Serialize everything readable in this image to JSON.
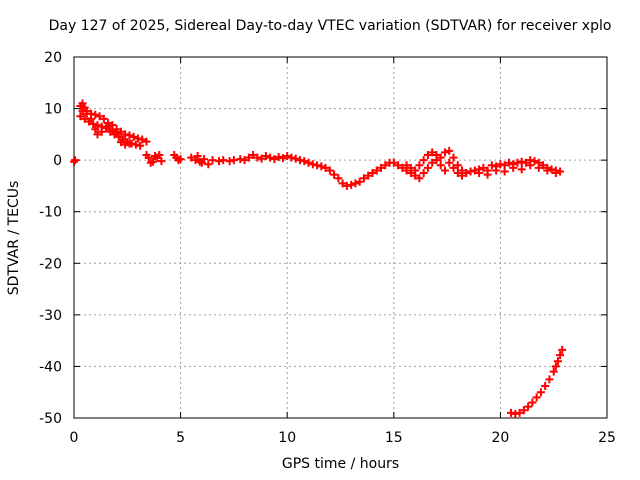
{
  "chart_data": {
    "type": "scatter",
    "title": "Day 127 of 2025, Sidereal Day-to-day VTEC variation (SDTVAR) for receiver xplo",
    "xlabel": "GPS time / hours",
    "ylabel": "SDTVAR / TECUs",
    "xlim": [
      0,
      25
    ],
    "ylim": [
      -50,
      20
    ],
    "xticks": [
      0,
      5,
      10,
      15,
      20,
      25
    ],
    "yticks": [
      20,
      10,
      0,
      -10,
      -20,
      -30,
      -40,
      -50
    ],
    "grid": true,
    "marker": "+",
    "color": "#ff0000",
    "series": [
      {
        "name": "SDTVAR",
        "points": [
          [
            0.0,
            -0.3
          ],
          [
            0.05,
            0.0
          ],
          [
            0.3,
            10.5
          ],
          [
            0.4,
            11.0
          ],
          [
            0.5,
            10.2
          ],
          [
            0.6,
            9.5
          ],
          [
            0.8,
            9.0
          ],
          [
            1.0,
            8.8
          ],
          [
            1.2,
            8.5
          ],
          [
            1.4,
            8.0
          ],
          [
            1.6,
            7.2
          ],
          [
            1.8,
            6.8
          ],
          [
            2.0,
            6.0
          ],
          [
            2.2,
            5.5
          ],
          [
            2.4,
            5.0
          ],
          [
            2.6,
            4.8
          ],
          [
            2.8,
            4.5
          ],
          [
            3.0,
            4.2
          ],
          [
            3.2,
            4.0
          ],
          [
            3.4,
            3.6
          ],
          [
            0.3,
            8.5
          ],
          [
            0.5,
            8.0
          ],
          [
            0.7,
            7.5
          ],
          [
            0.9,
            7.0
          ],
          [
            1.1,
            6.8
          ],
          [
            1.3,
            6.5
          ],
          [
            1.5,
            6.2
          ],
          [
            1.7,
            5.5
          ],
          [
            1.9,
            5.0
          ],
          [
            2.1,
            4.5
          ],
          [
            2.3,
            4.0
          ],
          [
            2.5,
            3.5
          ],
          [
            2.7,
            3.2
          ],
          [
            2.9,
            3.0
          ],
          [
            3.1,
            2.8
          ],
          [
            0.4,
            9.5
          ],
          [
            0.6,
            9.0
          ],
          [
            0.8,
            8.0
          ],
          [
            1.0,
            6.0
          ],
          [
            1.1,
            5.0
          ],
          [
            1.3,
            5.5
          ],
          [
            1.6,
            6.5
          ],
          [
            1.8,
            5.8
          ],
          [
            2.0,
            5.2
          ],
          [
            2.2,
            3.5
          ],
          [
            2.4,
            3.0
          ],
          [
            2.6,
            3.2
          ],
          [
            3.4,
            1.0
          ],
          [
            3.5,
            0.5
          ],
          [
            3.6,
            -0.5
          ],
          [
            3.7,
            -0.3
          ],
          [
            3.8,
            0.8
          ],
          [
            3.9,
            0.5
          ],
          [
            4.0,
            1.0
          ],
          [
            4.1,
            -0.2
          ],
          [
            4.7,
            1.0
          ],
          [
            4.8,
            0.5
          ],
          [
            4.9,
            0.0
          ],
          [
            5.0,
            0.2
          ],
          [
            5.5,
            0.5
          ],
          [
            5.7,
            0.0
          ],
          [
            5.8,
            0.8
          ],
          [
            5.9,
            -0.3
          ],
          [
            6.0,
            -0.5
          ],
          [
            6.1,
            0.2
          ],
          [
            6.3,
            -0.8
          ],
          [
            6.5,
            0.0
          ],
          [
            6.8,
            -0.2
          ],
          [
            7.0,
            0.0
          ],
          [
            7.3,
            -0.2
          ],
          [
            7.5,
            0.0
          ],
          [
            7.8,
            0.2
          ],
          [
            8.0,
            0.0
          ],
          [
            8.2,
            0.5
          ],
          [
            8.4,
            1.0
          ],
          [
            8.6,
            0.5
          ],
          [
            8.8,
            0.3
          ],
          [
            9.0,
            0.8
          ],
          [
            9.2,
            0.5
          ],
          [
            9.4,
            0.2
          ],
          [
            9.6,
            0.6
          ],
          [
            9.8,
            0.4
          ],
          [
            10.0,
            0.8
          ],
          [
            10.2,
            0.5
          ],
          [
            10.4,
            0.3
          ],
          [
            10.6,
            0.0
          ],
          [
            10.8,
            -0.2
          ],
          [
            11.0,
            -0.5
          ],
          [
            11.2,
            -0.8
          ],
          [
            11.4,
            -1.0
          ],
          [
            11.6,
            -1.2
          ],
          [
            11.8,
            -1.5
          ],
          [
            12.0,
            -2.0
          ],
          [
            12.2,
            -2.8
          ],
          [
            12.4,
            -3.5
          ],
          [
            12.6,
            -4.5
          ],
          [
            12.8,
            -5.0
          ],
          [
            13.0,
            -4.8
          ],
          [
            13.2,
            -4.5
          ],
          [
            13.4,
            -4.2
          ],
          [
            13.6,
            -3.5
          ],
          [
            13.8,
            -3.0
          ],
          [
            14.0,
            -2.5
          ],
          [
            14.2,
            -2.0
          ],
          [
            14.4,
            -1.5
          ],
          [
            14.6,
            -1.0
          ],
          [
            14.8,
            -0.5
          ],
          [
            15.0,
            -0.5
          ],
          [
            15.2,
            -1.0
          ],
          [
            15.4,
            -1.5
          ],
          [
            15.6,
            -2.0
          ],
          [
            15.8,
            -2.5
          ],
          [
            16.0,
            -2.0
          ],
          [
            16.2,
            -1.0
          ],
          [
            16.4,
            0.0
          ],
          [
            16.6,
            1.0
          ],
          [
            16.8,
            1.5
          ],
          [
            17.0,
            1.0
          ],
          [
            17.2,
            0.5
          ],
          [
            17.4,
            1.5
          ],
          [
            17.6,
            1.8
          ],
          [
            17.8,
            0.5
          ],
          [
            18.0,
            -1.0
          ],
          [
            18.2,
            -2.0
          ],
          [
            18.4,
            -2.5
          ],
          [
            18.6,
            -2.2
          ],
          [
            15.6,
            -1.0
          ],
          [
            15.8,
            -1.5
          ],
          [
            16.0,
            -3.0
          ],
          [
            16.2,
            -3.5
          ],
          [
            16.4,
            -2.5
          ],
          [
            16.6,
            -1.5
          ],
          [
            16.8,
            -0.5
          ],
          [
            17.0,
            0.0
          ],
          [
            17.2,
            -1.0
          ],
          [
            17.4,
            -2.0
          ],
          [
            17.6,
            -0.5
          ],
          [
            17.8,
            -1.5
          ],
          [
            18.0,
            -2.5
          ],
          [
            18.2,
            -3.0
          ],
          [
            18.8,
            -2.0
          ],
          [
            19.0,
            -1.8
          ],
          [
            19.2,
            -1.5
          ],
          [
            19.4,
            -2.0
          ],
          [
            19.6,
            -1.0
          ],
          [
            19.8,
            -1.2
          ],
          [
            20.0,
            -0.8
          ],
          [
            20.2,
            -1.0
          ],
          [
            20.4,
            -0.5
          ],
          [
            20.6,
            -0.8
          ],
          [
            20.8,
            -0.5
          ],
          [
            21.0,
            -0.3
          ],
          [
            21.2,
            -0.5
          ],
          [
            21.4,
            0.0
          ],
          [
            21.6,
            -0.2
          ],
          [
            21.8,
            -0.5
          ],
          [
            22.0,
            -1.0
          ],
          [
            22.2,
            -1.5
          ],
          [
            22.4,
            -1.8
          ],
          [
            22.6,
            -2.0
          ],
          [
            22.8,
            -2.2
          ],
          [
            19.0,
            -2.5
          ],
          [
            19.4,
            -2.8
          ],
          [
            19.8,
            -2.0
          ],
          [
            20.2,
            -2.2
          ],
          [
            20.6,
            -1.5
          ],
          [
            21.0,
            -1.8
          ],
          [
            21.4,
            -1.0
          ],
          [
            21.8,
            -1.5
          ],
          [
            22.2,
            -2.0
          ],
          [
            22.6,
            -2.5
          ],
          [
            20.5,
            -49.0
          ],
          [
            20.7,
            -49.2
          ],
          [
            20.9,
            -49.0
          ],
          [
            21.1,
            -48.5
          ],
          [
            21.3,
            -47.8
          ],
          [
            21.5,
            -47.0
          ],
          [
            21.7,
            -46.0
          ],
          [
            21.9,
            -45.0
          ],
          [
            22.1,
            -43.8
          ],
          [
            22.3,
            -42.5
          ],
          [
            22.5,
            -41.0
          ],
          [
            22.6,
            -40.0
          ],
          [
            22.7,
            -39.0
          ],
          [
            22.8,
            -37.8
          ],
          [
            22.9,
            -36.8
          ]
        ]
      }
    ]
  }
}
